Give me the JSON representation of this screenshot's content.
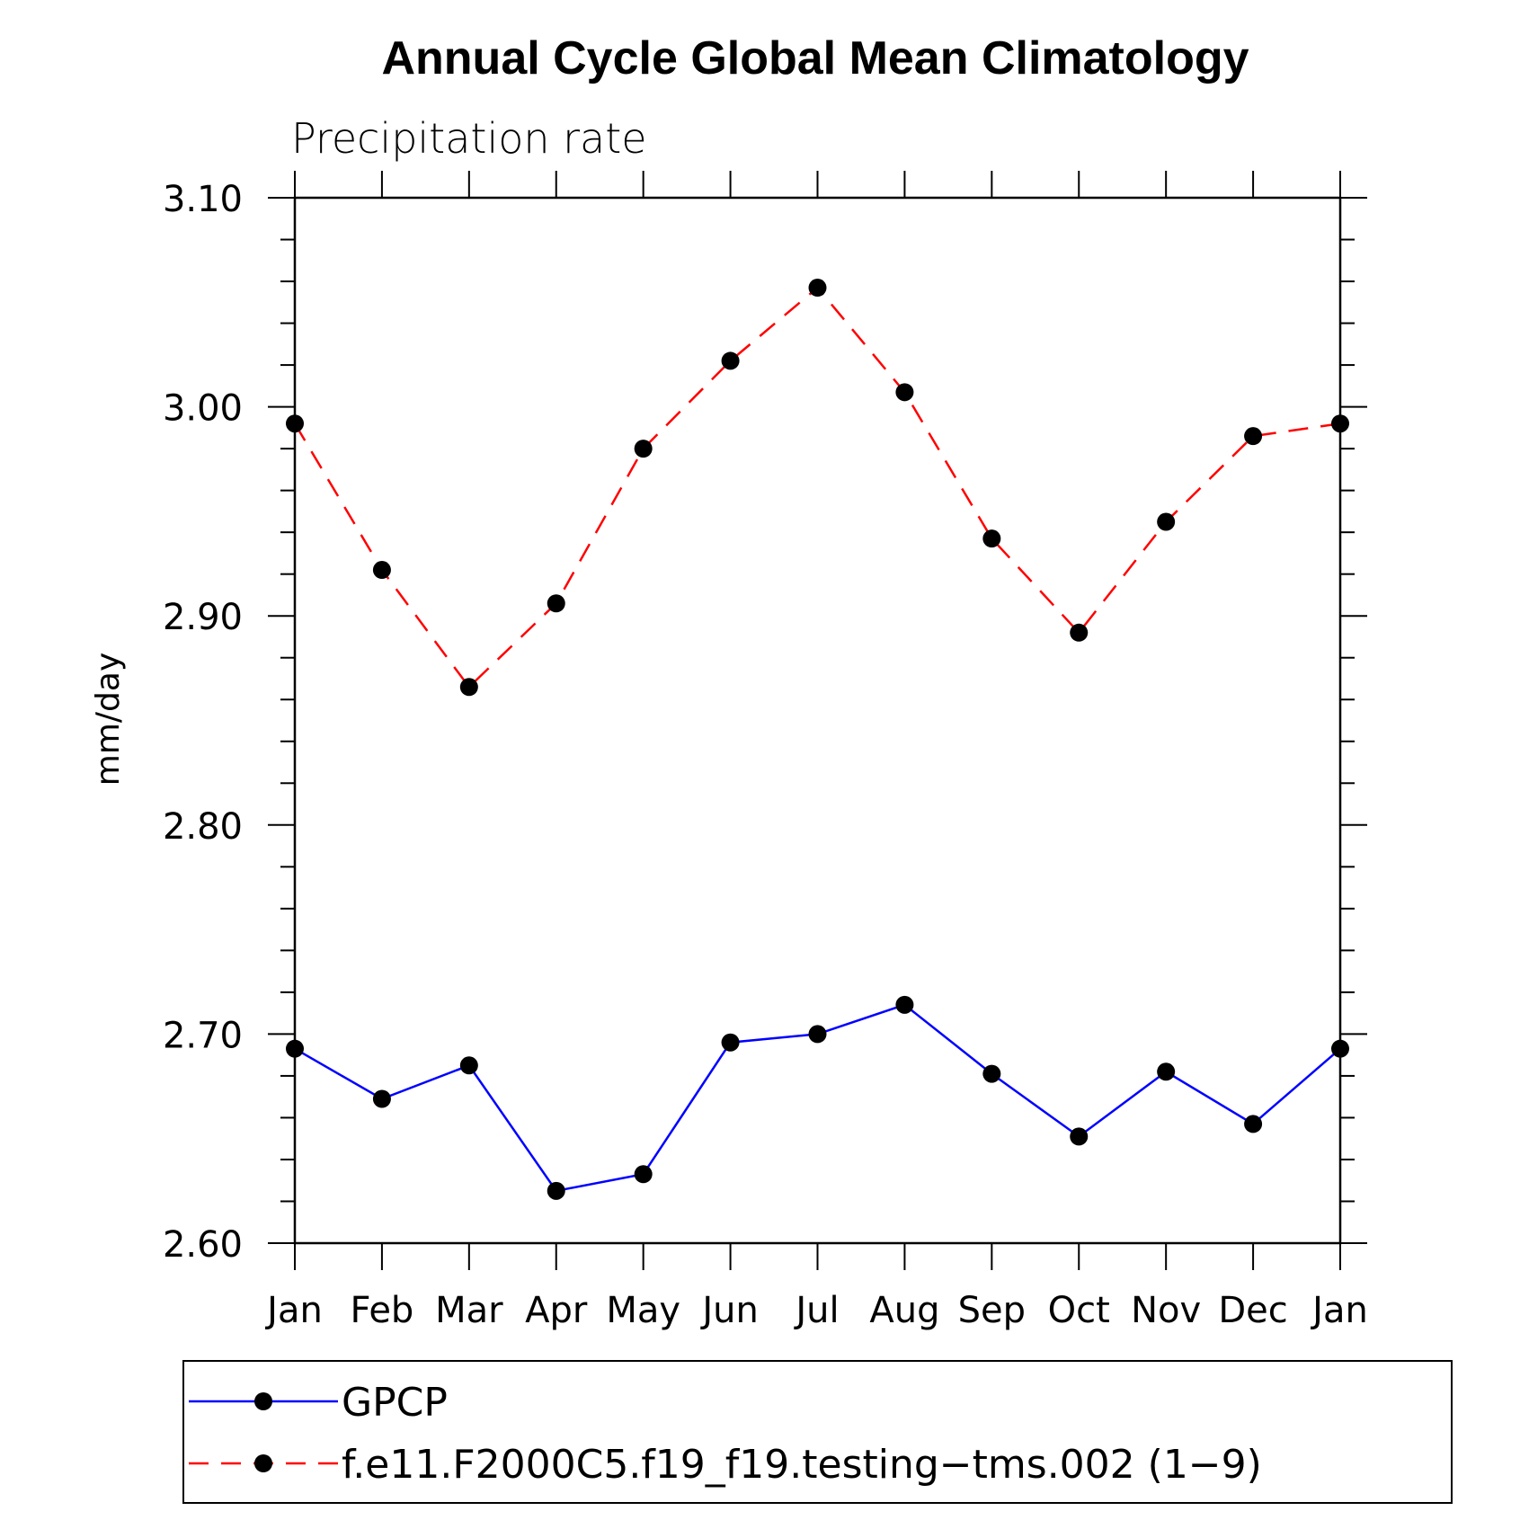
{
  "chart_data": {
    "type": "line",
    "title": "Annual Cycle Global Mean Climatology",
    "subtitle": "Precipitation rate",
    "ylabel": "mm/day",
    "xlabel": "",
    "categories": [
      "Jan",
      "Feb",
      "Mar",
      "Apr",
      "May",
      "Jun",
      "Jul",
      "Aug",
      "Sep",
      "Oct",
      "Nov",
      "Dec",
      "Jan"
    ],
    "ylim": [
      2.6,
      3.1
    ],
    "yticks": [
      "2.60",
      "2.70",
      "2.80",
      "2.90",
      "3.00",
      "3.10"
    ],
    "grid": false,
    "legend_position": "bottom",
    "series": [
      {
        "name": "GPCP",
        "color": "#0000ff",
        "style": "solid",
        "marker": "filled-circle",
        "values": [
          2.693,
          2.669,
          2.685,
          2.625,
          2.633,
          2.696,
          2.7,
          2.714,
          2.681,
          2.651,
          2.682,
          2.657,
          2.693
        ]
      },
      {
        "name": "f.e11.F2000C5.f19_f19.testing−tms.002 (1−9)",
        "color": "#ff0000",
        "style": "dashed",
        "marker": "filled-circle",
        "values": [
          2.992,
          2.922,
          2.866,
          2.906,
          2.98,
          3.022,
          3.057,
          3.007,
          2.937,
          2.892,
          2.945,
          2.986,
          2.992
        ]
      }
    ]
  }
}
